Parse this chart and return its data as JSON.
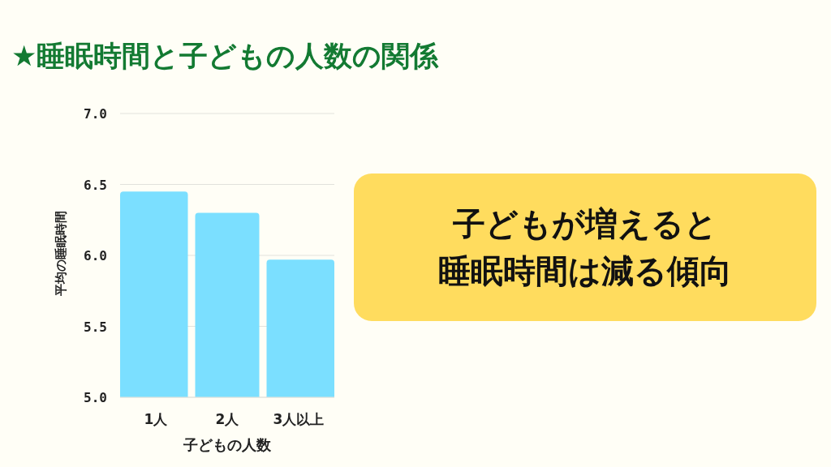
{
  "chart_data": {
    "type": "bar",
    "title": "★睡眠時間と子どもの人数の関係",
    "xlabel": "子どもの人数",
    "ylabel": "平均の睡眠時間",
    "categories": [
      "1人",
      "2人",
      "3人以上"
    ],
    "values": [
      6.45,
      6.3,
      5.97
    ],
    "color": "#7bdfff",
    "ylim": [
      5,
      7
    ],
    "yticks": [
      {
        "value": 5,
        "label": "5.0"
      },
      {
        "value": 5.5,
        "label": "5.5"
      },
      {
        "value": 6,
        "label": "6.0"
      },
      {
        "value": 6.5,
        "label": "6.5"
      },
      {
        "value": 7,
        "label": "7.0"
      }
    ],
    "grid": "y",
    "annotations": [
      "子どもが増えると",
      "睡眠時間は減る傾向"
    ]
  }
}
